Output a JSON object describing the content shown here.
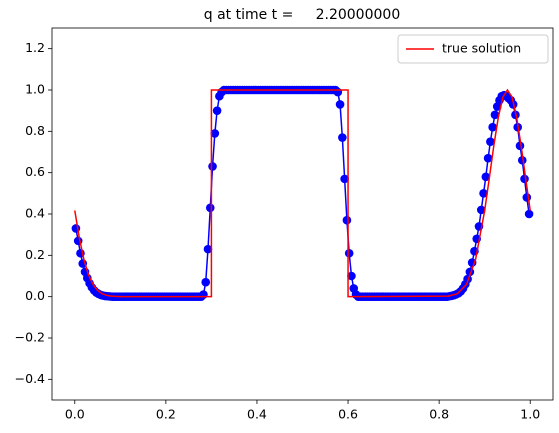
{
  "chart_data": {
    "type": "line",
    "title": "q at time t =     2.20000000",
    "xlim": [
      -0.05,
      1.05
    ],
    "ylim": [
      -0.5,
      1.3
    ],
    "xticks": [
      {
        "value": 0,
        "label": "0.0"
      },
      {
        "value": 0.2,
        "label": "0.2"
      },
      {
        "value": 0.4,
        "label": "0.4"
      },
      {
        "value": 0.6,
        "label": "0.6"
      },
      {
        "value": 0.8,
        "label": "0.8"
      },
      {
        "value": 1,
        "label": "1.0"
      }
    ],
    "yticks": [
      {
        "value": -0.4,
        "label": "−0.4"
      },
      {
        "value": -0.2,
        "label": "−0.2"
      },
      {
        "value": 0,
        "label": "0.0"
      },
      {
        "value": 0.2,
        "label": "0.2"
      },
      {
        "value": 0.4,
        "label": "0.4"
      },
      {
        "value": 0.6,
        "label": "0.6"
      },
      {
        "value": 0.8,
        "label": "0.8"
      },
      {
        "value": 1,
        "label": "1.0"
      },
      {
        "value": 1.2,
        "label": "1.2"
      }
    ],
    "legend": "upper right",
    "series": [
      {
        "color": "#0000ff",
        "markers": true,
        "x": [
          0.0025,
          0.0075,
          0.0125,
          0.0175,
          0.0225,
          0.0275,
          0.0325,
          0.0375,
          0.0425,
          0.0475,
          0.0525,
          0.0575,
          0.0625,
          0.0675,
          0.0725,
          0.0775,
          0.0825,
          0.0875,
          0.0925,
          0.0975,
          0.1025,
          0.1075,
          0.1125,
          0.1175,
          0.1225,
          0.1275,
          0.1325,
          0.1375,
          0.1425,
          0.1475,
          0.1525,
          0.1575,
          0.1625,
          0.1675,
          0.1725,
          0.1775,
          0.1825,
          0.1875,
          0.1925,
          0.1975,
          0.2025,
          0.2075,
          0.2125,
          0.2175,
          0.2225,
          0.2275,
          0.2325,
          0.2375,
          0.2425,
          0.2475,
          0.2525,
          0.2575,
          0.2625,
          0.2675,
          0.2725,
          0.2775,
          0.2825,
          0.2875,
          0.2925,
          0.2975,
          0.3025,
          0.3075,
          0.3125,
          0.3175,
          0.3225,
          0.3275,
          0.3325,
          0.3375,
          0.3425,
          0.3475,
          0.3525,
          0.3575,
          0.3625,
          0.3675,
          0.3725,
          0.3775,
          0.3825,
          0.3875,
          0.3925,
          0.3975,
          0.4025,
          0.4075,
          0.4125,
          0.4175,
          0.4225,
          0.4275,
          0.4325,
          0.4375,
          0.4425,
          0.4475,
          0.4525,
          0.4575,
          0.4625,
          0.4675,
          0.4725,
          0.4775,
          0.4825,
          0.4875,
          0.4925,
          0.4975,
          0.5025,
          0.5075,
          0.5125,
          0.5175,
          0.5225,
          0.5275,
          0.5325,
          0.5375,
          0.5425,
          0.5475,
          0.5525,
          0.5575,
          0.5625,
          0.5675,
          0.5725,
          0.5775,
          0.5825,
          0.5875,
          0.5925,
          0.5975,
          0.6025,
          0.6075,
          0.6125,
          0.6175,
          0.6225,
          0.6275,
          0.6325,
          0.6375,
          0.6425,
          0.6475,
          0.6525,
          0.6575,
          0.6625,
          0.6675,
          0.6725,
          0.6775,
          0.6825,
          0.6875,
          0.6925,
          0.6975,
          0.7025,
          0.7075,
          0.7125,
          0.7175,
          0.7225,
          0.7275,
          0.7325,
          0.7375,
          0.7425,
          0.7475,
          0.7525,
          0.7575,
          0.7625,
          0.7675,
          0.7725,
          0.7775,
          0.7825,
          0.7875,
          0.7925,
          0.7975,
          0.8025,
          0.8075,
          0.8125,
          0.8175,
          0.8225,
          0.8275,
          0.8325,
          0.8375,
          0.8425,
          0.8475,
          0.8525,
          0.8575,
          0.8625,
          0.8675,
          0.8725,
          0.8775,
          0.8825,
          0.8875,
          0.8925,
          0.8975,
          0.9025,
          0.9075,
          0.9125,
          0.9175,
          0.9225,
          0.9275,
          0.9325,
          0.9375,
          0.9425,
          0.9475,
          0.9525,
          0.9575,
          0.9625,
          0.9675,
          0.9725,
          0.9775,
          0.9825,
          0.9875,
          0.9925,
          0.9975
        ],
        "values": [
          0.33,
          0.27,
          0.21,
          0.16,
          0.12,
          0.09,
          0.065,
          0.045,
          0.03,
          0.02,
          0.013,
          0.008,
          0.005,
          0.003,
          0.002,
          0.001,
          0,
          0,
          0,
          0,
          0,
          0,
          0,
          0,
          0,
          0,
          0,
          0,
          0,
          0,
          0,
          0,
          0,
          0,
          0,
          0,
          0,
          0,
          0,
          0,
          0,
          0,
          0,
          0,
          0,
          0,
          0,
          0,
          0,
          0,
          0,
          0,
          0,
          0,
          0,
          0,
          0.01,
          0.07,
          0.23,
          0.43,
          0.63,
          0.79,
          0.9,
          0.97,
          0.99,
          1.0,
          1.0,
          1.0,
          1.0,
          1.0,
          1.0,
          1.0,
          1.0,
          1.0,
          1.0,
          1.0,
          1.0,
          1.0,
          1.0,
          1.0,
          1.0,
          1.0,
          1.0,
          1.0,
          1.0,
          1.0,
          1.0,
          1.0,
          1.0,
          1.0,
          1.0,
          1.0,
          1.0,
          1.0,
          1.0,
          1.0,
          1.0,
          1.0,
          1.0,
          1.0,
          1.0,
          1.0,
          1.0,
          1.0,
          1.0,
          1.0,
          1.0,
          1.0,
          1.0,
          1.0,
          1.0,
          1.0,
          1.0,
          1.0,
          1.0,
          0.99,
          0.93,
          0.77,
          0.57,
          0.37,
          0.21,
          0.1,
          0.04,
          0.01,
          0,
          0,
          0,
          0,
          0,
          0,
          0,
          0,
          0,
          0,
          0,
          0,
          0,
          0,
          0,
          0,
          0,
          0,
          0,
          0,
          0,
          0,
          0,
          0,
          0,
          0,
          0,
          0,
          0,
          0,
          0,
          0,
          0,
          0,
          0,
          0,
          0,
          0,
          0,
          0,
          0.002,
          0.004,
          0.007,
          0.011,
          0.017,
          0.026,
          0.04,
          0.06,
          0.085,
          0.12,
          0.165,
          0.22,
          0.28,
          0.34,
          0.42,
          0.5,
          0.58,
          0.67,
          0.75,
          0.82,
          0.88,
          0.92,
          0.95,
          0.97,
          0.975,
          0.97,
          0.96,
          0.95,
          0.93,
          0.88,
          0.82,
          0.73,
          0.66,
          0.57,
          0.48,
          0.4
        ]
      },
      {
        "name": "true solution",
        "color": "#ff0000",
        "markers": false,
        "x": [
          0,
          0.01,
          0.02,
          0.03,
          0.04,
          0.05,
          0.06,
          0.07,
          0.08,
          0.1,
          0.3,
          0.3,
          0.6,
          0.6,
          0.82,
          0.84,
          0.86,
          0.88,
          0.9,
          0.91,
          0.92,
          0.93,
          0.94,
          0.95,
          0.96,
          0.97,
          0.98,
          0.99,
          1.0
        ],
        "values": [
          0.417,
          0.284,
          0.18,
          0.106,
          0.059,
          0.03,
          0.0145,
          0.0065,
          0.0027,
          0,
          0,
          1,
          1,
          0,
          0.0027,
          0.0145,
          0.059,
          0.18,
          0.417,
          0.571,
          0.73,
          0.869,
          0.966,
          1,
          0.966,
          0.869,
          0.73,
          0.571,
          0.417
        ]
      }
    ]
  }
}
